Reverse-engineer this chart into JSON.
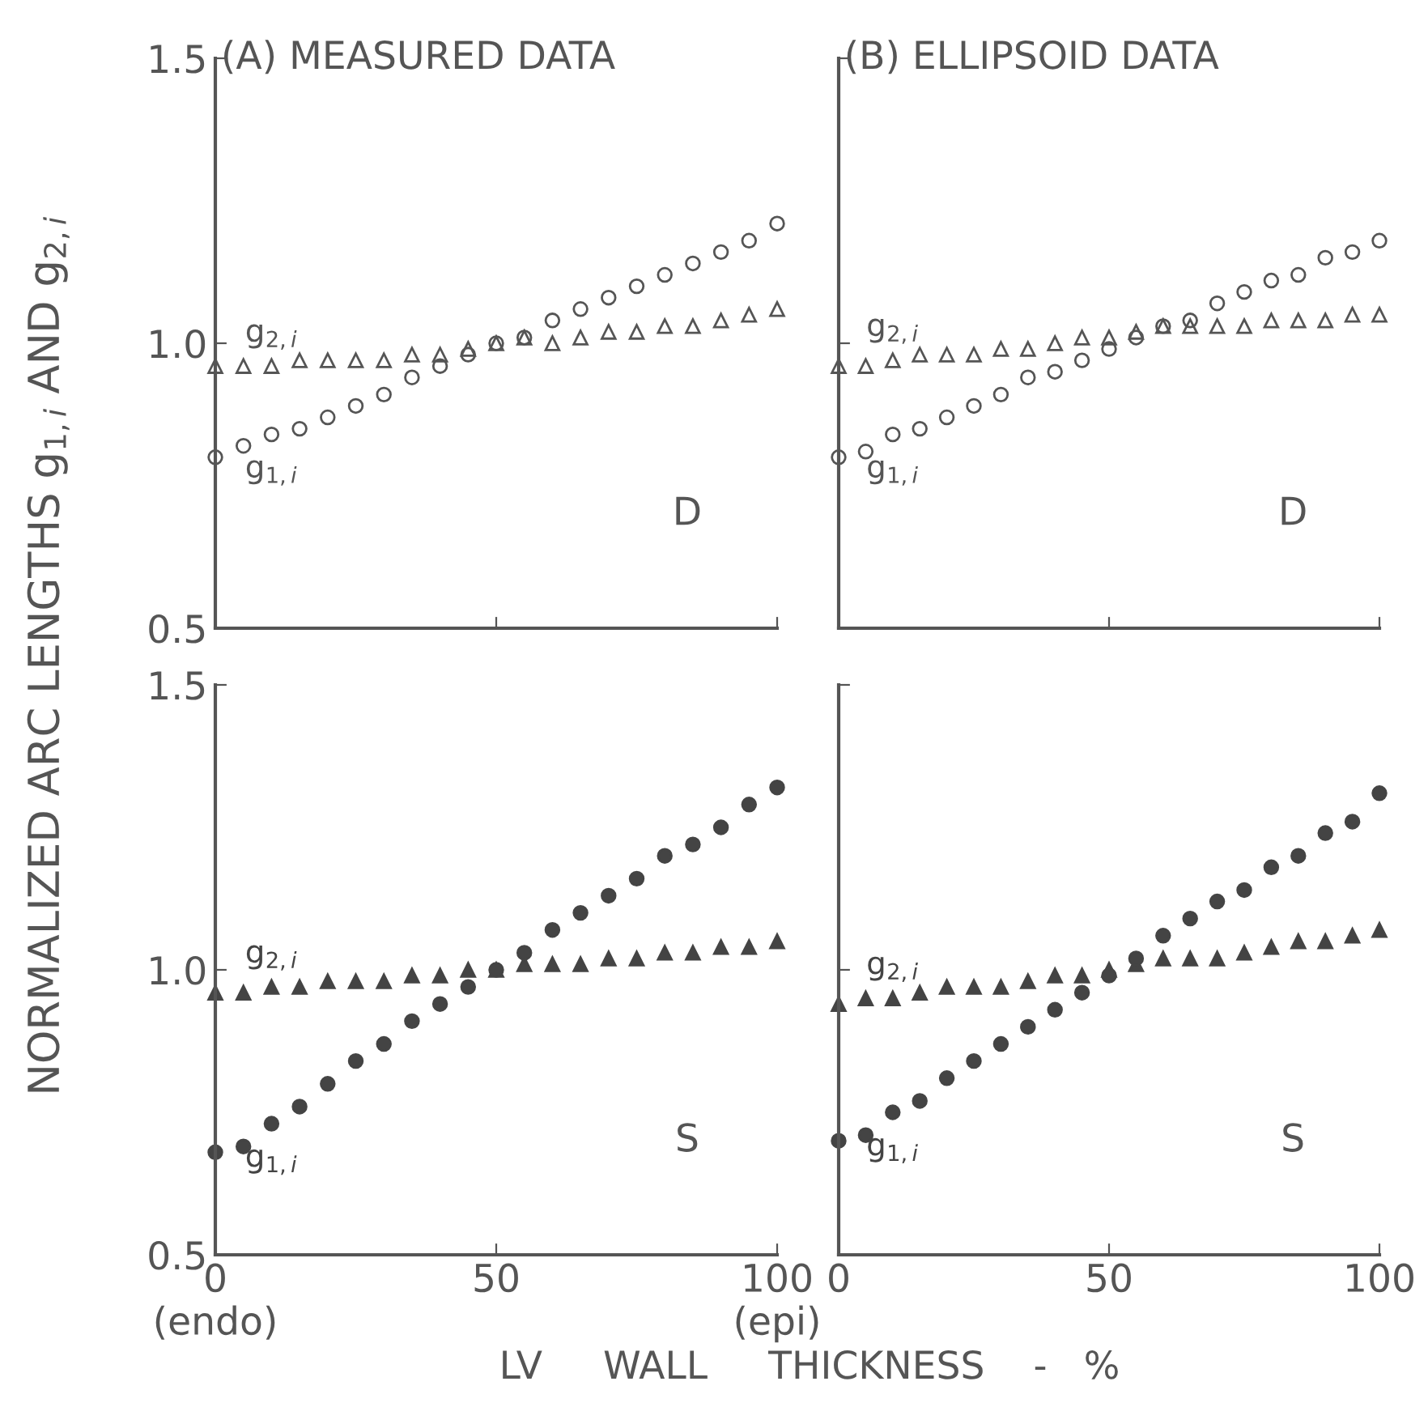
{
  "chart_data": [
    {
      "type": "scatter",
      "title": "(A) MEASURED DATA",
      "ylabel": "NORMALIZED ARC LENGTHS g$_{1,i}$ AND g$_{2,i}$",
      "annotations": [
        "D"
      ],
      "x": [
        0,
        5,
        10,
        15,
        20,
        25,
        30,
        35,
        40,
        45,
        50,
        55,
        60,
        65,
        70,
        75,
        80,
        85,
        90,
        95,
        100
      ],
      "xlim": [
        0,
        100
      ],
      "xticks": [
        0,
        50,
        100
      ],
      "ylim": [
        0.5,
        1.5
      ],
      "yticks": [
        {
          "value": 0.5,
          "label": "0.5"
        },
        {
          "value": 1,
          "label": "1.0"
        },
        {
          "value": 1.5,
          "label": "1.5"
        }
      ],
      "tick_labels": "y",
      "grid": false,
      "legend": false,
      "series": [
        {
          "name": "g$_{2,i}$",
          "color": "#555555",
          "marker": "triangle",
          "values": [
            0.96,
            0.96,
            0.96,
            0.97,
            0.97,
            0.97,
            0.97,
            0.98,
            0.98,
            0.99,
            1.0,
            1.01,
            1.0,
            1.01,
            1.02,
            1.02,
            1.03,
            1.03,
            1.04,
            1.05,
            1.06
          ]
        },
        {
          "name": "g$_{1,i}$",
          "color": "#555555",
          "marker": "circle",
          "values": [
            0.8,
            0.82,
            0.84,
            0.85,
            0.87,
            0.89,
            0.91,
            0.94,
            0.96,
            0.98,
            1.0,
            1.01,
            1.04,
            1.06,
            1.08,
            1.1,
            1.12,
            1.14,
            1.16,
            1.18,
            1.21
          ]
        }
      ]
    },
    {
      "type": "scatter",
      "title": "(B) ELLIPSOID DATA",
      "annotations": [
        "D"
      ],
      "x": [
        0,
        5,
        10,
        15,
        20,
        25,
        30,
        35,
        40,
        45,
        50,
        55,
        60,
        65,
        70,
        75,
        80,
        85,
        90,
        95,
        100
      ],
      "xlim": [
        0,
        100
      ],
      "xticks": [
        0,
        50,
        100
      ],
      "ylim": [
        0.5,
        1.5
      ],
      "yticks": [
        0.5,
        1,
        1.5
      ],
      "tick_labels": false,
      "grid": false,
      "legend": false,
      "series": [
        {
          "name": "g$_{2,i}$",
          "color": "#555555",
          "marker": "triangle",
          "values": [
            0.96,
            0.96,
            0.97,
            0.98,
            0.98,
            0.98,
            0.99,
            0.99,
            1.0,
            1.01,
            1.01,
            1.02,
            1.03,
            1.03,
            1.03,
            1.03,
            1.04,
            1.04,
            1.04,
            1.05,
            1.05
          ]
        },
        {
          "name": "g$_{1,i}$",
          "color": "#555555",
          "marker": "circle",
          "values": [
            0.8,
            0.81,
            0.84,
            0.85,
            0.87,
            0.89,
            0.91,
            0.94,
            0.95,
            0.97,
            0.99,
            1.01,
            1.03,
            1.04,
            1.07,
            1.09,
            1.11,
            1.12,
            1.15,
            1.16,
            1.18
          ]
        }
      ]
    },
    {
      "type": "scatter",
      "xlabel": "LV     WALL     THICKNESS    -   %",
      "annotations": [
        "S"
      ],
      "x": [
        0,
        5,
        10,
        15,
        20,
        25,
        30,
        35,
        40,
        45,
        50,
        55,
        60,
        65,
        70,
        75,
        80,
        85,
        90,
        95,
        100
      ],
      "xlim": [
        0,
        100
      ],
      "xticks": [
        {
          "value": 0,
          "label": "0\n(endo)"
        },
        50,
        {
          "value": 100,
          "label": "100\n(epi)"
        }
      ],
      "ylim": [
        0.5,
        1.5
      ],
      "yticks": [
        {
          "value": 0.5,
          "label": "0.5"
        },
        {
          "value": 1,
          "label": "1.0"
        },
        {
          "value": 1.5,
          "label": "1.5"
        }
      ],
      "grid": false,
      "legend": false,
      "series": [
        {
          "name": "g$_{2,i}$",
          "color": "#444444",
          "marker": "triangle",
          "values": [
            0.96,
            0.96,
            0.97,
            0.97,
            0.98,
            0.98,
            0.98,
            0.99,
            0.99,
            1.0,
            1.0,
            1.01,
            1.01,
            1.01,
            1.02,
            1.02,
            1.03,
            1.03,
            1.04,
            1.04,
            1.05
          ]
        },
        {
          "name": "g$_{1,i}$",
          "color": "#444444",
          "marker": "circle",
          "values": [
            0.68,
            0.69,
            0.73,
            0.76,
            0.8,
            0.84,
            0.87,
            0.91,
            0.94,
            0.97,
            1.0,
            1.03,
            1.07,
            1.1,
            1.13,
            1.16,
            1.2,
            1.22,
            1.25,
            1.29,
            1.32
          ]
        }
      ]
    },
    {
      "type": "scatter",
      "annotations": [
        "S"
      ],
      "x": [
        0,
        5,
        10,
        15,
        20,
        25,
        30,
        35,
        40,
        45,
        50,
        55,
        60,
        65,
        70,
        75,
        80,
        85,
        90,
        95,
        100
      ],
      "xlim": [
        0,
        100
      ],
      "xticks": [
        0,
        50,
        100
      ],
      "ylim": [
        0.5,
        1.5
      ],
      "yticks": [
        0.5,
        1,
        1.5
      ],
      "tick_labels": "x",
      "grid": false,
      "legend": false,
      "series": [
        {
          "name": "g$_{2,i}$",
          "color": "#444444",
          "marker": "triangle",
          "values": [
            0.94,
            0.95,
            0.95,
            0.96,
            0.97,
            0.97,
            0.97,
            0.98,
            0.99,
            0.99,
            1.0,
            1.01,
            1.02,
            1.02,
            1.02,
            1.03,
            1.04,
            1.05,
            1.05,
            1.06,
            1.07
          ]
        },
        {
          "name": "g$_{1,i}$",
          "color": "#444444",
          "marker": "circle",
          "values": [
            0.7,
            0.71,
            0.75,
            0.77,
            0.81,
            0.84,
            0.87,
            0.9,
            0.93,
            0.96,
            0.99,
            1.02,
            1.06,
            1.09,
            1.12,
            1.14,
            1.18,
            1.2,
            1.24,
            1.26,
            1.31
          ]
        }
      ]
    }
  ]
}
